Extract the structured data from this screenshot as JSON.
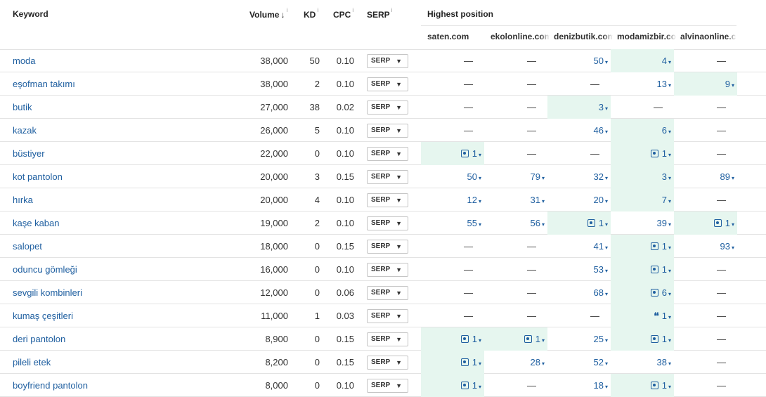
{
  "header": {
    "keyword": "Keyword",
    "volume": "Volume",
    "volume_sort": "↓",
    "kd": "KD",
    "cpc": "CPC",
    "serp": "SERP",
    "info": "i",
    "highest_position": "Highest position",
    "domains": [
      "saten.com",
      "ekolonline.com",
      "denizbutik.com",
      "modamizbir.com",
      "alvinaonline.com"
    ]
  },
  "serp_button_label": "SERP",
  "caret": "▼",
  "chevron": "▾",
  "dash": "—",
  "colors": {
    "link": "#1f5fa0",
    "highlight": "#e6f6ef",
    "border": "#e3e3e3"
  },
  "rows": [
    {
      "keyword": "moda",
      "volume": "38,000",
      "kd": "50",
      "cpc": "0.10",
      "positions": [
        {
          "v": "—"
        },
        {
          "v": "—"
        },
        {
          "v": "50"
        },
        {
          "v": "4",
          "hl": true
        },
        {
          "v": "—"
        }
      ]
    },
    {
      "keyword": "eşofman takımı",
      "volume": "38,000",
      "kd": "2",
      "cpc": "0.10",
      "positions": [
        {
          "v": "—"
        },
        {
          "v": "—"
        },
        {
          "v": "—"
        },
        {
          "v": "13"
        },
        {
          "v": "9",
          "hl": true
        }
      ]
    },
    {
      "keyword": "butik",
      "volume": "27,000",
      "kd": "38",
      "cpc": "0.02",
      "positions": [
        {
          "v": "—"
        },
        {
          "v": "—"
        },
        {
          "v": "3",
          "hl": true
        },
        {
          "v": "—"
        },
        {
          "v": "—"
        }
      ]
    },
    {
      "keyword": "kazak",
      "volume": "26,000",
      "kd": "5",
      "cpc": "0.10",
      "positions": [
        {
          "v": "—"
        },
        {
          "v": "—"
        },
        {
          "v": "46"
        },
        {
          "v": "6",
          "hl": true
        },
        {
          "v": "—"
        }
      ]
    },
    {
      "keyword": "büstiyer",
      "volume": "22,000",
      "kd": "0",
      "cpc": "0.10",
      "positions": [
        {
          "v": "1",
          "hl": true,
          "icon": "image-icon"
        },
        {
          "v": "—"
        },
        {
          "v": "—"
        },
        {
          "v": "1",
          "hl": true,
          "icon": "image-icon"
        },
        {
          "v": "—"
        }
      ]
    },
    {
      "keyword": "kot pantolon",
      "volume": "20,000",
      "kd": "3",
      "cpc": "0.15",
      "positions": [
        {
          "v": "50"
        },
        {
          "v": "79"
        },
        {
          "v": "32"
        },
        {
          "v": "3",
          "hl": true
        },
        {
          "v": "89"
        }
      ]
    },
    {
      "keyword": "hırka",
      "volume": "20,000",
      "kd": "4",
      "cpc": "0.10",
      "positions": [
        {
          "v": "12"
        },
        {
          "v": "31"
        },
        {
          "v": "20"
        },
        {
          "v": "7",
          "hl": true
        },
        {
          "v": "—"
        }
      ]
    },
    {
      "keyword": "kaşe kaban",
      "volume": "19,000",
      "kd": "2",
      "cpc": "0.10",
      "positions": [
        {
          "v": "55"
        },
        {
          "v": "56"
        },
        {
          "v": "1",
          "hl": true,
          "icon": "image-icon"
        },
        {
          "v": "39"
        },
        {
          "v": "1",
          "hl": true,
          "icon": "image-icon"
        }
      ]
    },
    {
      "keyword": "salopet",
      "volume": "18,000",
      "kd": "0",
      "cpc": "0.15",
      "positions": [
        {
          "v": "—"
        },
        {
          "v": "—"
        },
        {
          "v": "41"
        },
        {
          "v": "1",
          "hl": true,
          "icon": "image-icon"
        },
        {
          "v": "93"
        }
      ]
    },
    {
      "keyword": "oduncu gömleği",
      "volume": "16,000",
      "kd": "0",
      "cpc": "0.10",
      "positions": [
        {
          "v": "—"
        },
        {
          "v": "—"
        },
        {
          "v": "53"
        },
        {
          "v": "1",
          "hl": true,
          "icon": "image-icon"
        },
        {
          "v": "—"
        }
      ]
    },
    {
      "keyword": "sevgili kombinleri",
      "volume": "12,000",
      "kd": "0",
      "cpc": "0.06",
      "positions": [
        {
          "v": "—"
        },
        {
          "v": "—"
        },
        {
          "v": "68"
        },
        {
          "v": "6",
          "hl": true,
          "icon": "image-icon"
        },
        {
          "v": "—"
        }
      ]
    },
    {
      "keyword": "kumaş çeşitleri",
      "volume": "11,000",
      "kd": "1",
      "cpc": "0.03",
      "positions": [
        {
          "v": "—"
        },
        {
          "v": "—"
        },
        {
          "v": "—"
        },
        {
          "v": "1",
          "hl": true,
          "icon": "quote-icon"
        },
        {
          "v": "—"
        }
      ]
    },
    {
      "keyword": "deri pantolon",
      "volume": "8,900",
      "kd": "0",
      "cpc": "0.15",
      "positions": [
        {
          "v": "1",
          "hl": true,
          "icon": "image-icon"
        },
        {
          "v": "1",
          "hl": true,
          "icon": "image-icon"
        },
        {
          "v": "25"
        },
        {
          "v": "1",
          "hl": true,
          "icon": "image-icon"
        },
        {
          "v": "—"
        }
      ]
    },
    {
      "keyword": "pileli etek",
      "volume": "8,200",
      "kd": "0",
      "cpc": "0.15",
      "positions": [
        {
          "v": "1",
          "hl": true,
          "icon": "image-icon"
        },
        {
          "v": "28"
        },
        {
          "v": "52"
        },
        {
          "v": "38"
        },
        {
          "v": "—"
        }
      ]
    },
    {
      "keyword": "boyfriend pantolon",
      "volume": "8,000",
      "kd": "0",
      "cpc": "0.10",
      "positions": [
        {
          "v": "1",
          "hl": true,
          "icon": "image-icon"
        },
        {
          "v": "—"
        },
        {
          "v": "18"
        },
        {
          "v": "1",
          "hl": true,
          "icon": "image-icon"
        },
        {
          "v": "—"
        }
      ]
    }
  ]
}
